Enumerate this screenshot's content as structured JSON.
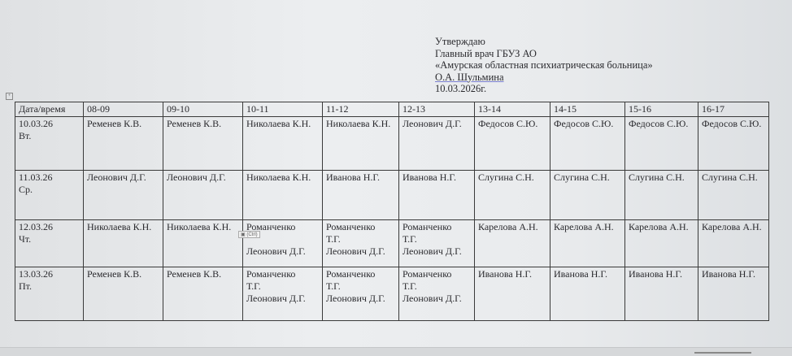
{
  "approval": {
    "lines": [
      "Утверждаю",
      "Главный врач ГБУЗ АО",
      "«Амурская областная психиатрическая больница»",
      "О.А. Шульмина",
      "10.03.2026г."
    ]
  },
  "table": {
    "headers": [
      "Дата/время",
      "08-09",
      "09-10",
      "10-11",
      "11-12",
      "12-13",
      "13-14",
      "14-15",
      "15-16",
      "16-17"
    ],
    "rows": [
      [
        "10.03.26\nВт.",
        "Ременев К.В.",
        "Ременев К.В.",
        "Николаева К.Н.",
        "Николаева К.Н.",
        "Леонович Д.Г.",
        "Федосов С.Ю.",
        "Федосов С.Ю.",
        "Федосов С.Ю.",
        "Федосов С.Ю."
      ],
      [
        "11.03.26\nСр.",
        "Леонович Д.Г.",
        "Леонович Д.Г.",
        "Николаева К.Н.",
        "Иванова Н.Г.",
        "Иванова Н.Г.",
        "Слугина С.Н.",
        "Слугина С.Н.",
        "Слугина С.Н.",
        "Слугина С.Н."
      ],
      [
        "12.03.26\nЧт.",
        "Николаева К.Н.",
        "Николаева К.Н.",
        "Романченко\n\nЛеонович Д.Г.",
        "Романченко\nТ.Г.\nЛеонович Д.Г.",
        "Романченко\nТ.Г.\nЛеонович Д.Г.",
        "Карелова А.Н.",
        "Карелова А.Н.",
        "Карелова А.Н.",
        "Карелова А.Н."
      ],
      [
        "13.03.26\nПт.",
        "Ременев К.В.",
        "Ременев К.В.",
        "Романченко\nТ.Г.\nЛеонович Д.Г.",
        "Романченко\nТ.Г.\nЛеонович Д.Г.",
        "Романченко\nТ.Г.\nЛеонович Д.Г.",
        "Иванова Н.Г.",
        "Иванова Н.Г.",
        "Иванова Н.Г.",
        "Иванова Н.Г."
      ]
    ]
  },
  "paste_options": {
    "label": "(Ctrl)",
    "icon": "clipboard-icon"
  }
}
